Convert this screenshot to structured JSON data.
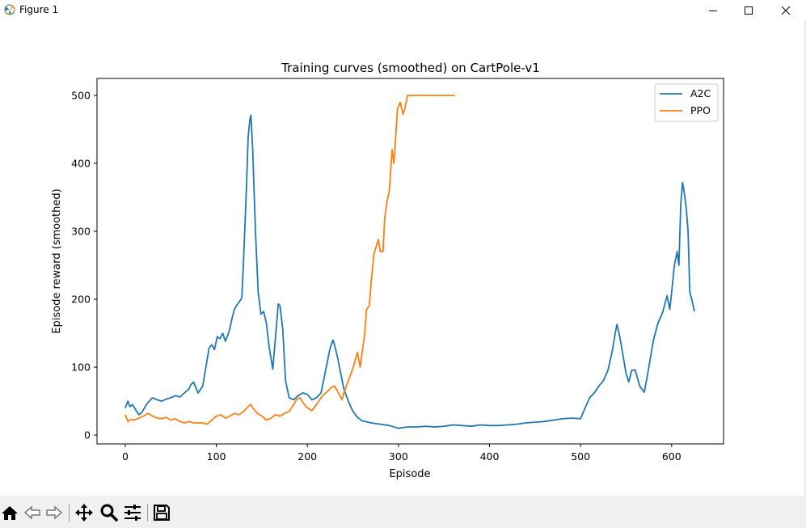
{
  "window": {
    "title": "Figure 1"
  },
  "chart_data": {
    "type": "line",
    "title": "Training curves (smoothed) on CartPole-v1",
    "xlabel": "Episode",
    "ylabel": "Episode reward (smoothed)",
    "xlim": [
      -31,
      657
    ],
    "ylim": [
      -13,
      525
    ],
    "xticks": [
      0,
      100,
      200,
      300,
      400,
      500,
      600
    ],
    "yticks": [
      0,
      100,
      200,
      300,
      400,
      500
    ],
    "grid": false,
    "legend_position": "top-right",
    "series": [
      {
        "name": "A2C",
        "color": "#1f77b4",
        "x": [
          0,
          3,
          5,
          8,
          12,
          15,
          18,
          22,
          25,
          30,
          35,
          40,
          45,
          50,
          55,
          60,
          65,
          70,
          72,
          75,
          80,
          85,
          88,
          92,
          95,
          98,
          101,
          104,
          107,
          110,
          114,
          117,
          120,
          123,
          126,
          128,
          130,
          133,
          135,
          137,
          138,
          140,
          143,
          146,
          149,
          152,
          155,
          158,
          162,
          166,
          168,
          170,
          173,
          176,
          180,
          185,
          190,
          195,
          200,
          205,
          210,
          215,
          220,
          225,
          228,
          230,
          233,
          236,
          240,
          245,
          250,
          255,
          260,
          270,
          280,
          290,
          300,
          310,
          320,
          330,
          340,
          350,
          360,
          370,
          380,
          390,
          400,
          410,
          420,
          430,
          440,
          450,
          460,
          470,
          480,
          490,
          500,
          505,
          510,
          515,
          520,
          525,
          530,
          535,
          538,
          540,
          543,
          546,
          550,
          553,
          556,
          560,
          565,
          570,
          575,
          580,
          585,
          590,
          595,
          598,
          600,
          603,
          606,
          608,
          610,
          612,
          614,
          616,
          618,
          620,
          622,
          625
        ],
        "y": [
          40,
          50,
          42,
          45,
          36,
          30,
          33,
          42,
          48,
          55,
          52,
          50,
          53,
          55,
          58,
          56,
          62,
          68,
          74,
          78,
          62,
          72,
          95,
          128,
          133,
          126,
          145,
          142,
          150,
          138,
          152,
          170,
          186,
          192,
          198,
          202,
          260,
          360,
          440,
          465,
          471,
          420,
          300,
          210,
          178,
          182,
          165,
          130,
          97,
          160,
          193,
          190,
          155,
          80,
          55,
          52,
          58,
          62,
          60,
          52,
          55,
          62,
          95,
          128,
          140,
          132,
          115,
          95,
          68,
          50,
          35,
          26,
          21,
          18,
          16,
          14,
          10,
          12,
          12,
          13,
          12,
          13,
          15,
          14,
          13,
          15,
          14,
          14,
          15,
          16,
          18,
          19,
          20,
          22,
          24,
          25,
          24,
          40,
          55,
          62,
          72,
          80,
          95,
          125,
          150,
          163,
          145,
          122,
          90,
          78,
          95,
          96,
          72,
          63,
          100,
          140,
          165,
          180,
          205,
          185,
          210,
          250,
          270,
          250,
          340,
          372,
          355,
          335,
          300,
          210,
          200,
          182
        ]
      },
      {
        "name": "PPO",
        "color": "#ff7f0e",
        "x": [
          0,
          3,
          6,
          10,
          15,
          20,
          25,
          30,
          35,
          40,
          45,
          50,
          55,
          60,
          65,
          70,
          75,
          80,
          85,
          90,
          95,
          100,
          105,
          110,
          115,
          120,
          125,
          130,
          135,
          138,
          140,
          145,
          150,
          155,
          160,
          165,
          170,
          175,
          180,
          185,
          188,
          192,
          195,
          200,
          205,
          210,
          215,
          220,
          223,
          226,
          230,
          235,
          238,
          240,
          245,
          250,
          255,
          258,
          260,
          263,
          265,
          268,
          270,
          273,
          275,
          278,
          280,
          283,
          285,
          287,
          290,
          293,
          295,
          297,
          299,
          302,
          305,
          307,
          310,
          313,
          316,
          320,
          330,
          340,
          350,
          362
        ],
        "y": [
          30,
          20,
          23,
          22,
          25,
          28,
          32,
          28,
          25,
          24,
          26,
          22,
          24,
          20,
          18,
          20,
          18,
          18,
          18,
          16,
          22,
          28,
          30,
          25,
          28,
          32,
          30,
          35,
          42,
          45,
          40,
          32,
          28,
          22,
          25,
          30,
          28,
          32,
          35,
          45,
          52,
          55,
          48,
          40,
          36,
          45,
          55,
          62,
          65,
          70,
          72,
          60,
          52,
          62,
          80,
          98,
          122,
          100,
          120,
          150,
          185,
          190,
          225,
          265,
          275,
          288,
          270,
          270,
          320,
          340,
          360,
          420,
          400,
          440,
          480,
          490,
          472,
          480,
          500,
          500,
          500,
          500,
          500,
          500,
          500,
          500
        ]
      }
    ]
  },
  "toolbar": {
    "home": "home-icon",
    "back": "back-arrow-icon",
    "forward": "forward-arrow-icon",
    "pan": "pan-icon",
    "zoom": "zoom-icon",
    "configure": "configure-subplots-icon",
    "save": "save-icon"
  }
}
